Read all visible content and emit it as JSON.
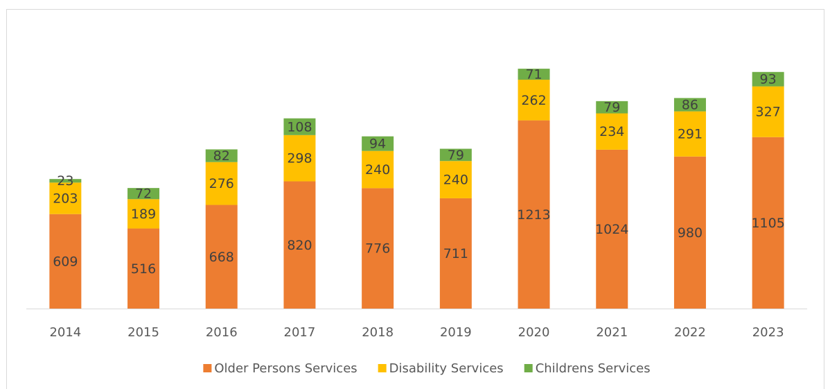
{
  "chart_data": {
    "type": "stacked_bar",
    "categories": [
      "2014",
      "2015",
      "2016",
      "2017",
      "2018",
      "2019",
      "2020",
      "2021",
      "2022",
      "2023"
    ],
    "series": [
      {
        "name": "Older Persons Services",
        "color": "#ed7d31",
        "values": [
          609,
          516,
          668,
          820,
          776,
          711,
          1213,
          1024,
          980,
          1105
        ]
      },
      {
        "name": "Disability Services",
        "color": "#ffc000",
        "values": [
          203,
          189,
          276,
          298,
          240,
          240,
          262,
          234,
          291,
          327
        ]
      },
      {
        "name": "Childrens Services",
        "color": "#70ad47",
        "values": [
          23,
          72,
          82,
          108,
          94,
          79,
          71,
          79,
          86,
          93
        ]
      }
    ],
    "ylim": [
      0,
      1600
    ],
    "legend": "bottom"
  }
}
